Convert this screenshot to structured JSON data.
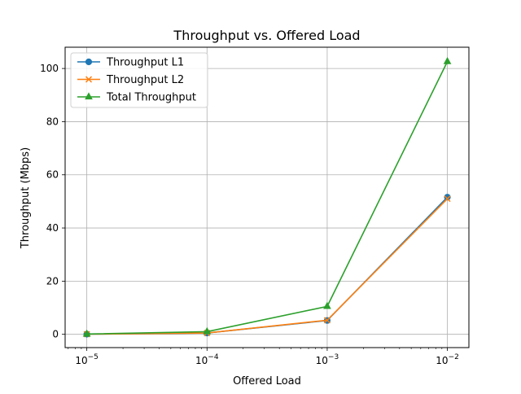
{
  "chart_data": {
    "type": "line",
    "title": "Throughput vs. Offered Load",
    "xlabel": "Offered Load",
    "ylabel": "Throughput (Mbps)",
    "xscale": "log",
    "x": [
      1e-05,
      0.0001,
      0.001,
      0.01
    ],
    "xlim": [
      6.6e-06,
      0.0151
    ],
    "ylim": [
      -5,
      108
    ],
    "xticks": [
      {
        "value": 1e-05,
        "base": "10",
        "exp": "−5"
      },
      {
        "value": 0.0001,
        "base": "10",
        "exp": "−4"
      },
      {
        "value": 0.001,
        "base": "10",
        "exp": "−3"
      },
      {
        "value": 0.01,
        "base": "10",
        "exp": "−2"
      }
    ],
    "yticks": [
      {
        "value": 0,
        "label": "0"
      },
      {
        "value": 20,
        "label": "20"
      },
      {
        "value": 40,
        "label": "40"
      },
      {
        "value": 60,
        "label": "60"
      },
      {
        "value": 80,
        "label": "80"
      },
      {
        "value": 100,
        "label": "100"
      }
    ],
    "grid": true,
    "legend_position": "top-left",
    "series": [
      {
        "name": "Throughput L1",
        "color": "#1f77b4",
        "marker": "circle",
        "values": [
          0.05,
          0.5,
          5.2,
          51.6
        ]
      },
      {
        "name": "Throughput L2",
        "color": "#ff7f0e",
        "marker": "x",
        "values": [
          0.05,
          0.5,
          5.3,
          51.0
        ]
      },
      {
        "name": "Total Throughput",
        "color": "#2ca02c",
        "marker": "triangle",
        "values": [
          0.1,
          1.0,
          10.5,
          102.6
        ]
      }
    ]
  }
}
